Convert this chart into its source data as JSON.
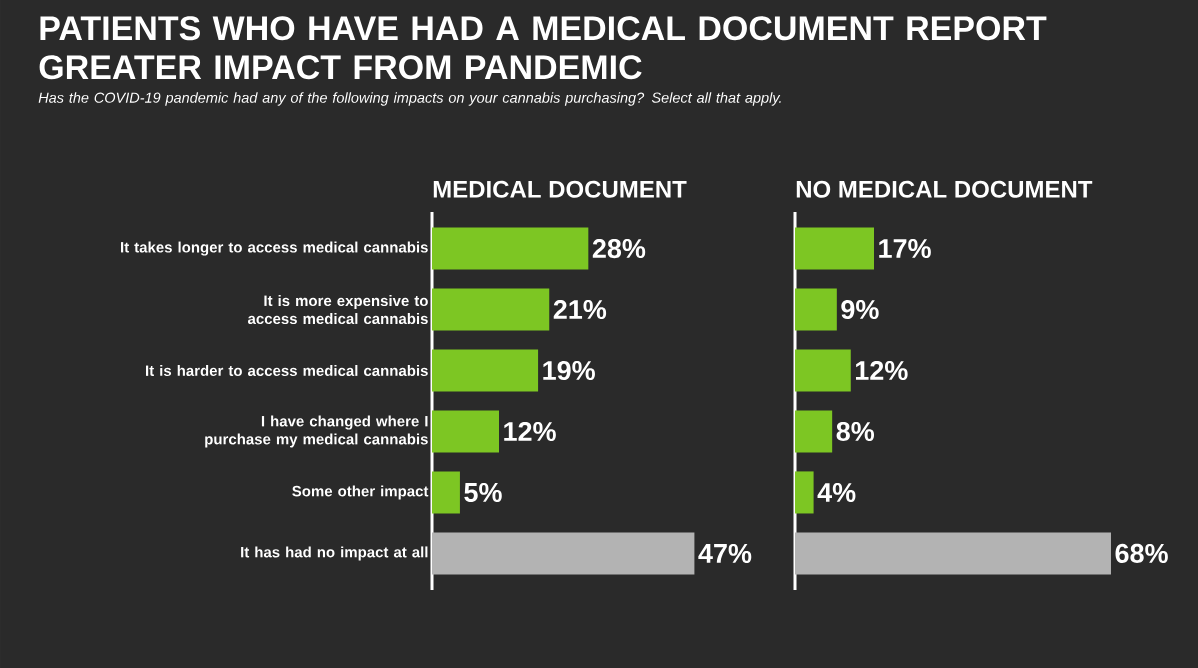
{
  "chart_data": [
    {
      "type": "other",
      "title": "PATIENTS WHO HAVE HAD A MEDICAL DOCUMENT REPORT GREATER IMPACT FROM PANDEMIC",
      "subtitle": "Has the COVID-19 pandemic had any of the following impacts on your cannabis purchasing? Select all that apply."
    },
    {
      "type": "bar",
      "orientation": "horizontal",
      "title": "MEDICAL DOCUMENT",
      "categories": [
        "It takes longer to access medical cannabis",
        "It is more expensive to access medical cannabis",
        "It is harder to access medical cannabis",
        "I have changed where I purchase my medical cannabis",
        "Some other impact",
        "It has had no impact at all"
      ],
      "values": [
        28,
        21,
        19,
        12,
        5,
        47
      ],
      "colors": [
        "#7dc623",
        "#7dc623",
        "#7dc623",
        "#7dc623",
        "#7dc623",
        "#b3b3b3"
      ],
      "value_labels": [
        "28%",
        "21%",
        "19%",
        "12%",
        "5%",
        "47%"
      ]
    },
    {
      "type": "bar",
      "orientation": "horizontal",
      "title": "NO MEDICAL DOCUMENT",
      "categories": [
        null,
        null,
        null,
        null,
        null,
        null
      ],
      "values": [
        17,
        9,
        12,
        8,
        4,
        68
      ],
      "colors": [
        "#7dc623",
        "#7dc623",
        "#7dc623",
        "#7dc623",
        "#7dc623",
        "#b3b3b3"
      ],
      "value_labels": [
        "17%",
        "9%",
        "12%",
        "8%",
        "4%",
        "68%"
      ]
    }
  ]
}
